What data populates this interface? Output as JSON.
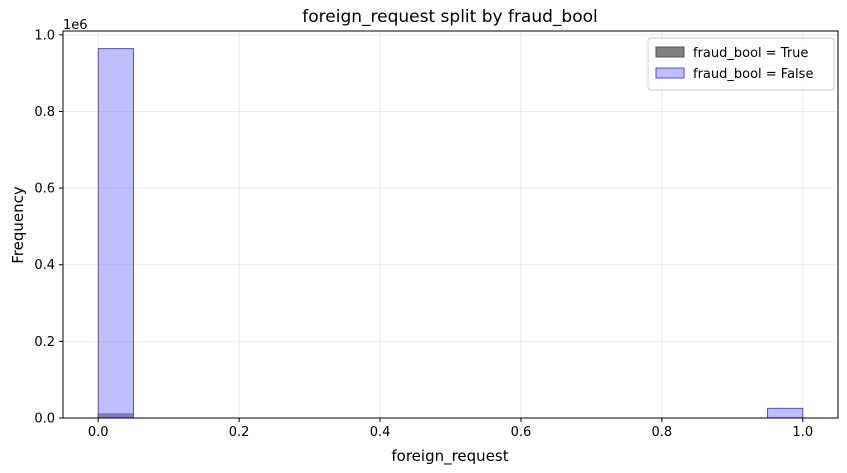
{
  "chart_data": {
    "type": "bar",
    "title": "foreign_request split by fraud_bool",
    "xlabel": "foreign_request",
    "ylabel": "Frequency",
    "y_offset_label": "1e6",
    "xlim": [
      -0.05,
      1.05
    ],
    "ylim": [
      0,
      1.01
    ],
    "y_scale_multiplier": 1000000,
    "x_ticks": [
      0.0,
      0.2,
      0.4,
      0.6,
      0.8,
      1.0
    ],
    "x_tick_labels": [
      "0.0",
      "0.2",
      "0.4",
      "0.6",
      "0.8",
      "1.0"
    ],
    "y_ticks": [
      0.0,
      0.2,
      0.4,
      0.6,
      0.8,
      1.0
    ],
    "y_tick_labels": [
      "0.0",
      "0.2",
      "0.4",
      "0.6",
      "0.8",
      "1.0"
    ],
    "grid": true,
    "legend_position": "top-right",
    "bin_width": 0.05,
    "series": [
      {
        "name": "fraud_bool = True",
        "color": "#808080",
        "edge": "#555555",
        "bins": [
          {
            "x_start": 0.0,
            "x_end": 0.05,
            "value": 0.0107
          },
          {
            "x_start": 0.95,
            "x_end": 1.0,
            "value": 0.0004
          }
        ]
      },
      {
        "name": "fraud_bool = False",
        "color": "#8080ff",
        "edge": "#5050c0",
        "bins": [
          {
            "x_start": 0.0,
            "x_end": 0.05,
            "value": 0.964
          },
          {
            "x_start": 0.95,
            "x_end": 1.0,
            "value": 0.0252
          }
        ]
      }
    ]
  }
}
